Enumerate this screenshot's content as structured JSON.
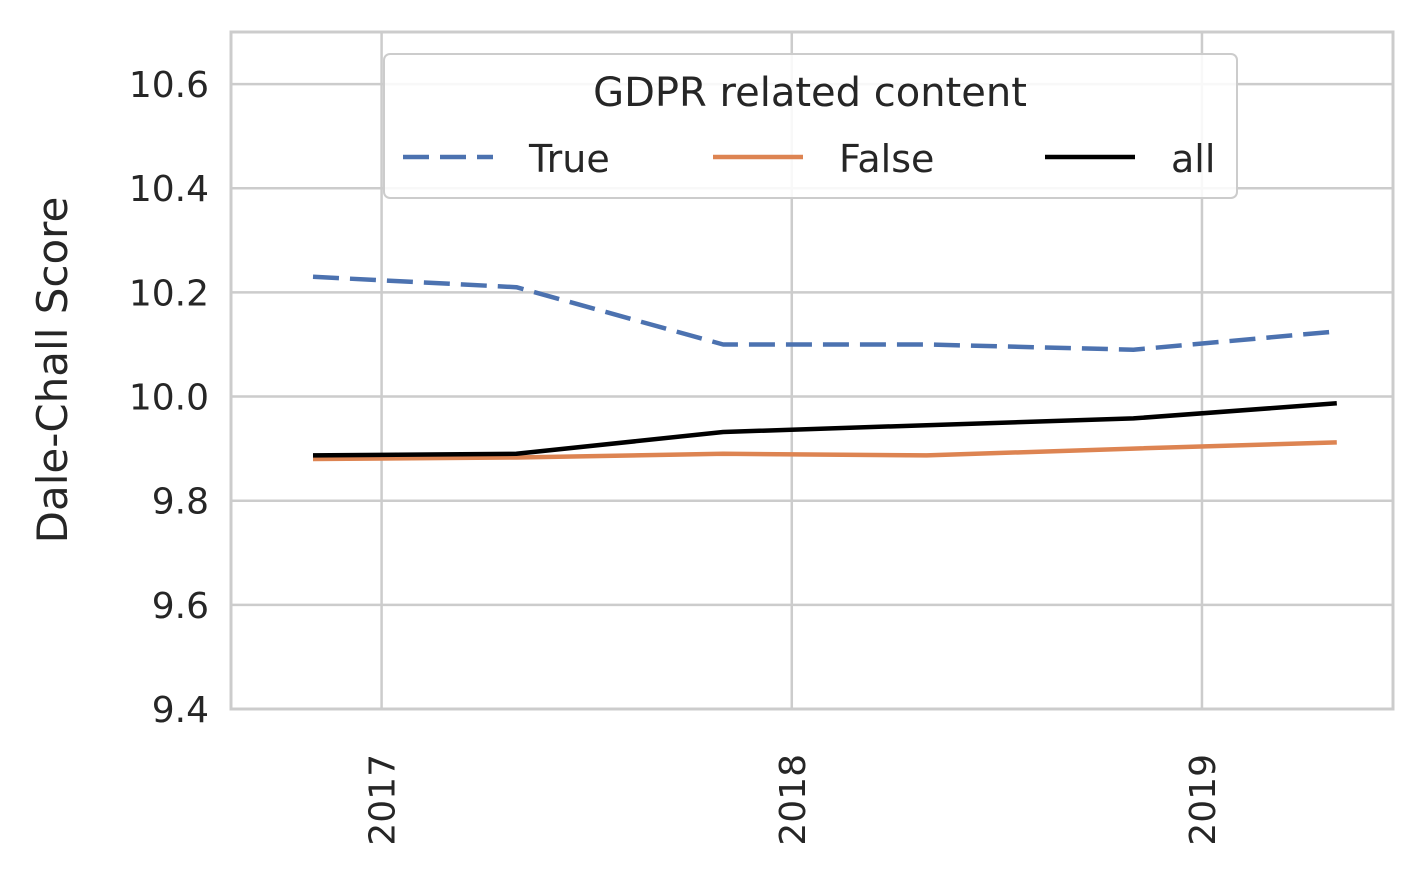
{
  "chart_data": {
    "type": "line",
    "title": "",
    "xlabel": "",
    "ylabel": "Dale-Chall Score",
    "ylim": [
      9.4,
      10.7
    ],
    "xlim": [
      "2016-08-20",
      "2019-06-20"
    ],
    "x_ticks": [
      "2017",
      "2018",
      "2019"
    ],
    "y_ticks": [
      "9.4",
      "9.6",
      "9.8",
      "10.0",
      "10.2",
      "10.4",
      "10.6"
    ],
    "grid": true,
    "legend": {
      "title": "GDPR related content",
      "placement": "top-center",
      "ncol": 3
    },
    "x": [
      "2016-11",
      "2017-05",
      "2017-11",
      "2018-05",
      "2018-11",
      "2019-05"
    ],
    "series": [
      {
        "name": "True",
        "color": "#4c72b0",
        "style": "dashed",
        "values": [
          10.23,
          10.21,
          10.1,
          10.1,
          10.09,
          10.125
        ]
      },
      {
        "name": "False",
        "color": "#dd8452",
        "style": "solid",
        "values": [
          9.88,
          9.883,
          9.89,
          9.887,
          9.9,
          9.912
        ]
      },
      {
        "name": "all",
        "color": "#000000",
        "style": "solid",
        "values": [
          9.887,
          9.89,
          9.932,
          9.945,
          9.958,
          9.987
        ]
      }
    ]
  }
}
